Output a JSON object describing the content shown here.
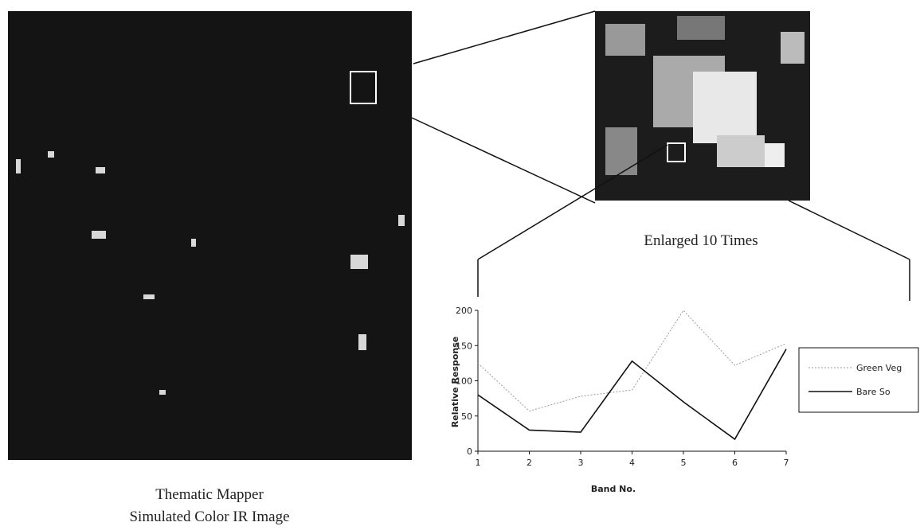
{
  "captions": {
    "main_image": [
      "Thematic Mapper",
      "Simulated Color IR Image"
    ],
    "enlarged_image": "Enlarged 10 Times"
  },
  "chart_data": {
    "type": "line",
    "x": [
      1,
      2,
      3,
      4,
      5,
      6,
      7
    ],
    "series": [
      {
        "name": "Green Veg",
        "color": "#9a9a9a",
        "values": [
          125,
          57,
          78,
          87,
          200,
          122,
          153
        ]
      },
      {
        "name": "Bare So",
        "color": "#111111",
        "values": [
          80,
          30,
          27,
          128,
          70,
          17,
          145
        ]
      }
    ],
    "xlabel": "Band No.",
    "ylabel": "Relative Response",
    "xlim": [
      1,
      7
    ],
    "xticks": [
      1,
      2,
      3,
      4,
      5,
      6,
      7
    ],
    "ylim": [
      0,
      200
    ],
    "yticks": [
      0,
      50,
      100,
      150,
      200
    ],
    "legend": "right"
  }
}
